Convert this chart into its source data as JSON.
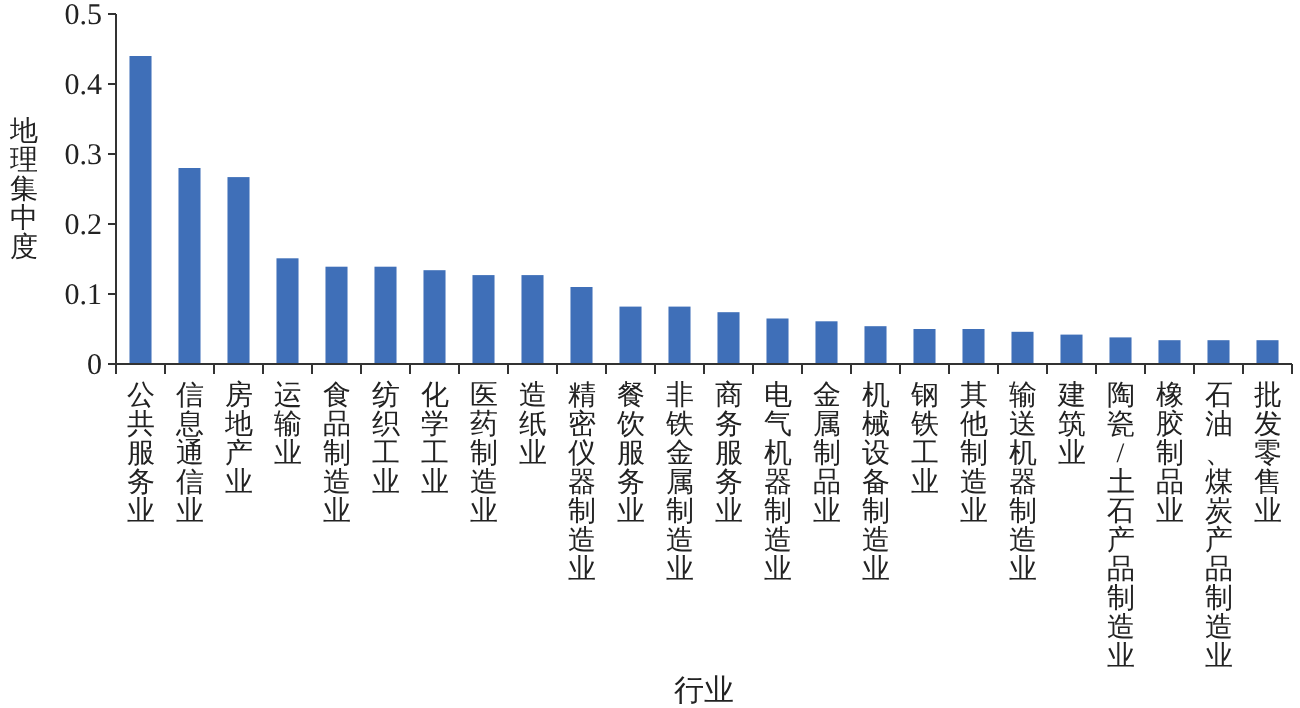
{
  "chart_data": {
    "type": "bar",
    "xlabel": "行业",
    "ylabel": "地理集中度",
    "categories": [
      "公共服务业",
      "信息通信业",
      "房地产业",
      "运输业",
      "食品制造业",
      "纺织工业",
      "化学工业",
      "医药制造业",
      "造纸业",
      "精密仪器制造业",
      "餐饮服务业",
      "非铁金属制造业",
      "商务服务业",
      "电气机器制造业",
      "金属制品业",
      "机械设备制造业",
      "钢铁工业",
      "其他制造业",
      "输送机器制造业",
      "建筑业",
      "陶瓷/土石产品制造业",
      "橡胶制品业",
      "石油、煤炭产品制造业",
      "批发零售业"
    ],
    "values": [
      0.44,
      0.28,
      0.267,
      0.151,
      0.139,
      0.139,
      0.134,
      0.127,
      0.127,
      0.11,
      0.082,
      0.082,
      0.074,
      0.065,
      0.061,
      0.054,
      0.05,
      0.05,
      0.046,
      0.042,
      0.038,
      0.034,
      0.034,
      0.034
    ],
    "color": "#3f6fb8",
    "ylim": [
      0,
      0.5
    ],
    "yticks": [
      0,
      0.1,
      0.2,
      0.3,
      0.4,
      0.5
    ],
    "grid": false,
    "legend": false
  }
}
